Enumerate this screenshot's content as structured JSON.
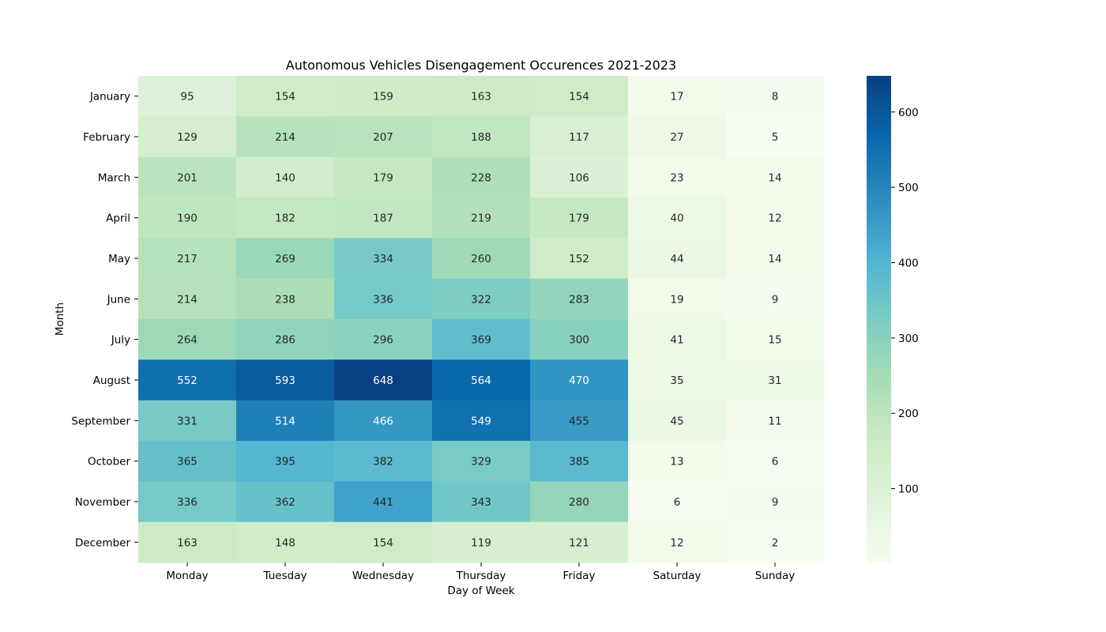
{
  "chart_data": {
    "type": "heatmap",
    "title": "Autonomous Vehicles Disengagement Occurences 2021-2023",
    "xlabel": "Day of Week",
    "ylabel": "Month",
    "x_categories": [
      "Monday",
      "Tuesday",
      "Wednesday",
      "Thursday",
      "Friday",
      "Saturday",
      "Sunday"
    ],
    "y_categories": [
      "January",
      "February",
      "March",
      "April",
      "May",
      "June",
      "July",
      "August",
      "September",
      "October",
      "November",
      "December"
    ],
    "values": [
      [
        95,
        154,
        159,
        163,
        154,
        17,
        8
      ],
      [
        129,
        214,
        207,
        188,
        117,
        27,
        5
      ],
      [
        201,
        140,
        179,
        228,
        106,
        23,
        14
      ],
      [
        190,
        182,
        187,
        219,
        179,
        40,
        12
      ],
      [
        217,
        269,
        334,
        260,
        152,
        44,
        14
      ],
      [
        214,
        238,
        336,
        322,
        283,
        19,
        9
      ],
      [
        264,
        286,
        296,
        369,
        300,
        41,
        15
      ],
      [
        552,
        593,
        648,
        564,
        470,
        35,
        31
      ],
      [
        331,
        514,
        466,
        549,
        455,
        45,
        11
      ],
      [
        365,
        395,
        382,
        329,
        385,
        13,
        6
      ],
      [
        336,
        362,
        441,
        343,
        280,
        6,
        9
      ],
      [
        163,
        148,
        154,
        119,
        121,
        12,
        2
      ]
    ],
    "colormap": "GnBu",
    "colorbar": {
      "range": [
        2,
        648
      ],
      "ticks": [
        100,
        200,
        300,
        400,
        500,
        600
      ]
    },
    "annotated": true,
    "grid": false,
    "legend": "none"
  }
}
